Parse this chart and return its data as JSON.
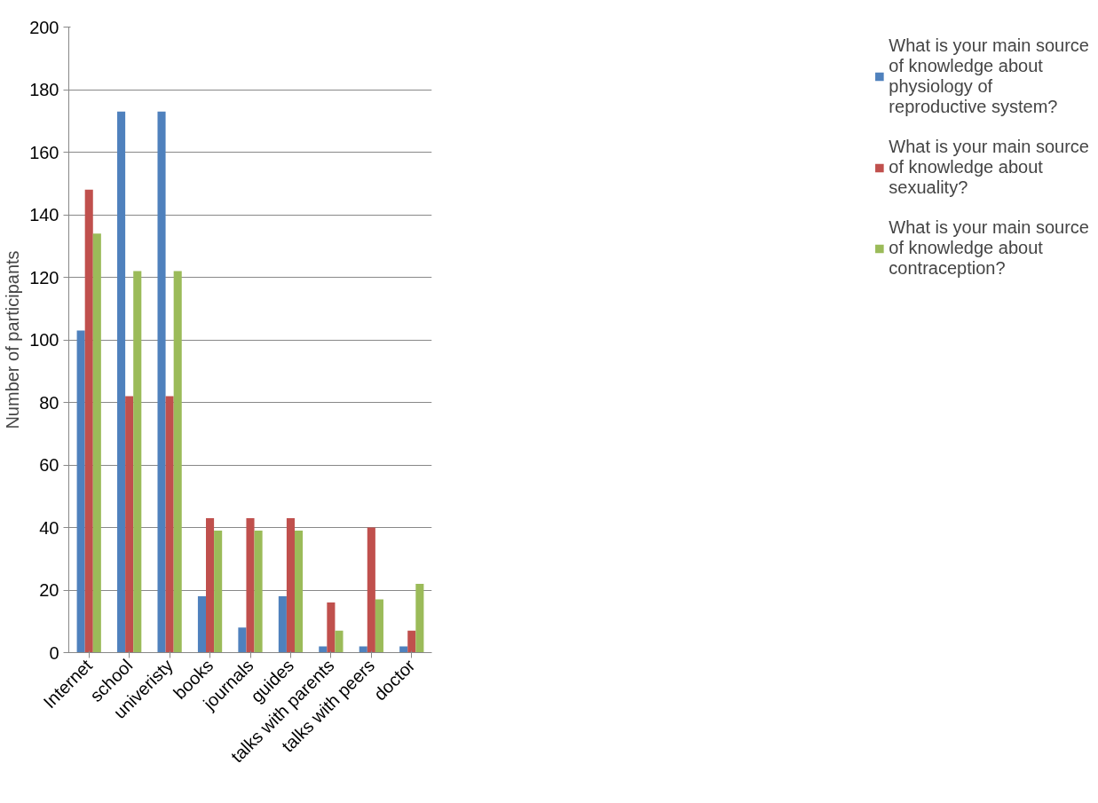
{
  "chart_data": {
    "type": "bar",
    "ylabel": "Number of participants",
    "categories": [
      "Internet",
      "school",
      "univeristy",
      "books",
      "journals",
      "guides",
      "talks with parents",
      "talks with peers",
      "doctor"
    ],
    "series": [
      {
        "name": "What is your main source of knowledge about physiology of reproductive system?",
        "color": "#4f81bd",
        "values": [
          103,
          173,
          173,
          18,
          8,
          18,
          2,
          2,
          2
        ]
      },
      {
        "name": "What is your main source of knowledge about sexuality?",
        "color": "#c0504d",
        "values": [
          148,
          82,
          82,
          43,
          43,
          43,
          16,
          40,
          7
        ]
      },
      {
        "name": "What is your main source of knowledge about contraception?",
        "color": "#9bbb59",
        "values": [
          134,
          122,
          122,
          39,
          39,
          39,
          7,
          17,
          22
        ]
      }
    ],
    "ylim": [
      0,
      200
    ],
    "yticks": [
      0,
      20,
      40,
      60,
      80,
      100,
      120,
      140,
      160,
      180,
      200
    ],
    "grid": "y",
    "legend": "right"
  }
}
